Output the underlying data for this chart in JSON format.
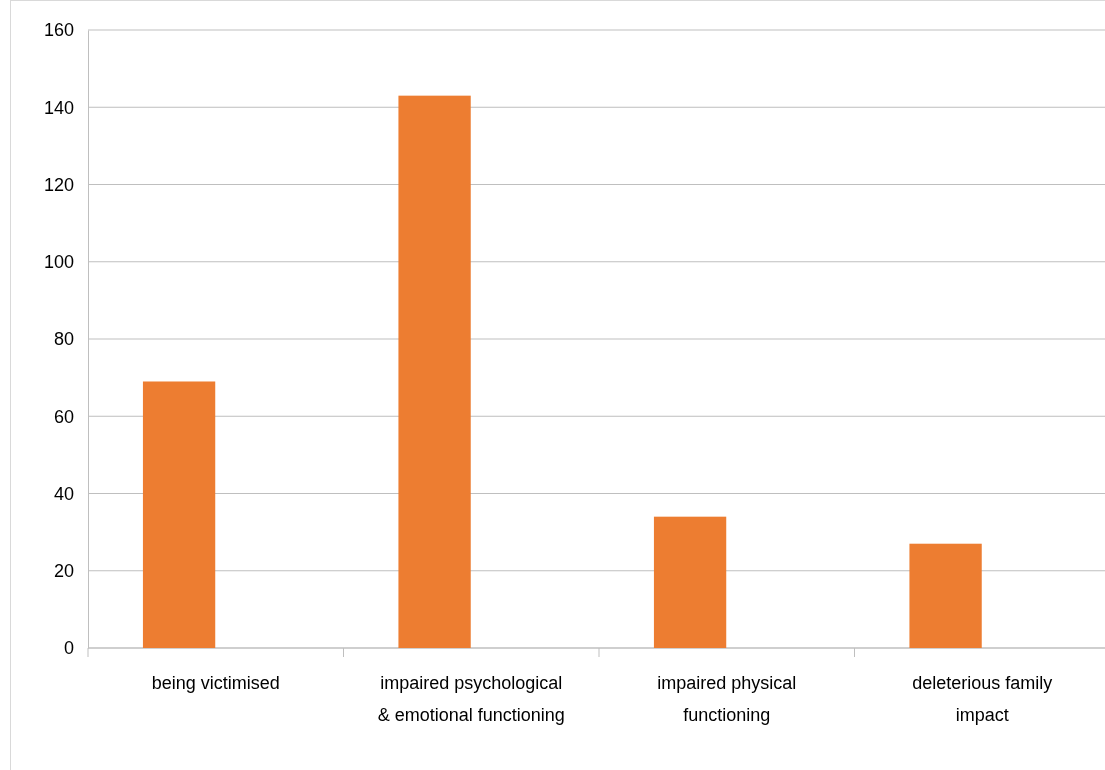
{
  "chart_data": {
    "type": "bar",
    "categories": [
      "being victimised",
      "impaired psychological & emotional functioning",
      "impaired physical functioning",
      "deleterious family impact"
    ],
    "values": [
      69,
      143,
      34,
      27
    ],
    "color": "#ed7d31",
    "ylim": [
      0,
      160
    ],
    "yticks": [
      0,
      20,
      40,
      60,
      80,
      100,
      120,
      140,
      160
    ],
    "grid": "y"
  }
}
